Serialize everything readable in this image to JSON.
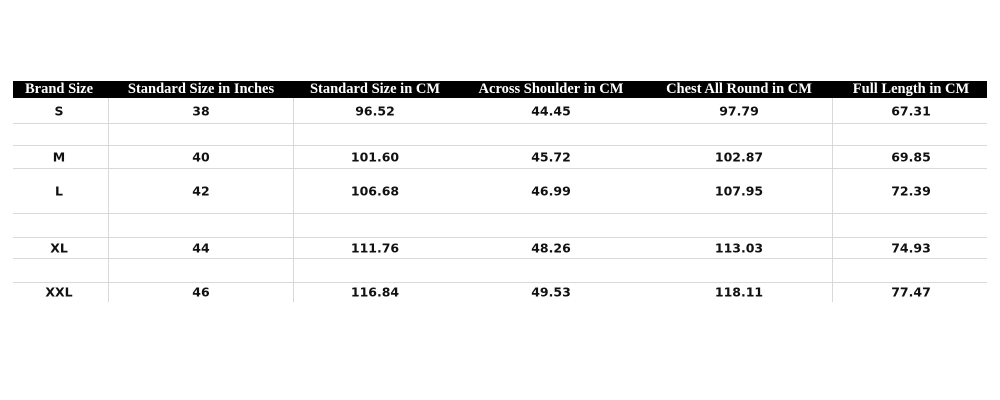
{
  "table": {
    "headers": [
      "Brand Size",
      "Standard Size in Inches",
      "Standard Size in CM",
      "Across Shoulder in CM",
      "Chest All Round in CM",
      "Full Length in CM"
    ],
    "rows": [
      [
        "S",
        "38",
        "96.52",
        "44.45",
        "97.79",
        "67.31"
      ],
      [
        "M",
        "40",
        "101.60",
        "45.72",
        "102.87",
        "69.85"
      ],
      [
        "L",
        "42",
        "106.68",
        "46.99",
        "107.95",
        "72.39"
      ],
      [
        "XL",
        "44",
        "111.76",
        "48.26",
        "113.03",
        "74.93"
      ],
      [
        "XXL",
        "46",
        "116.84",
        "49.53",
        "118.11",
        "77.47"
      ]
    ],
    "header_bg": "#000000",
    "header_text": "#ffffff",
    "grid_color": "#d9d9d9"
  }
}
